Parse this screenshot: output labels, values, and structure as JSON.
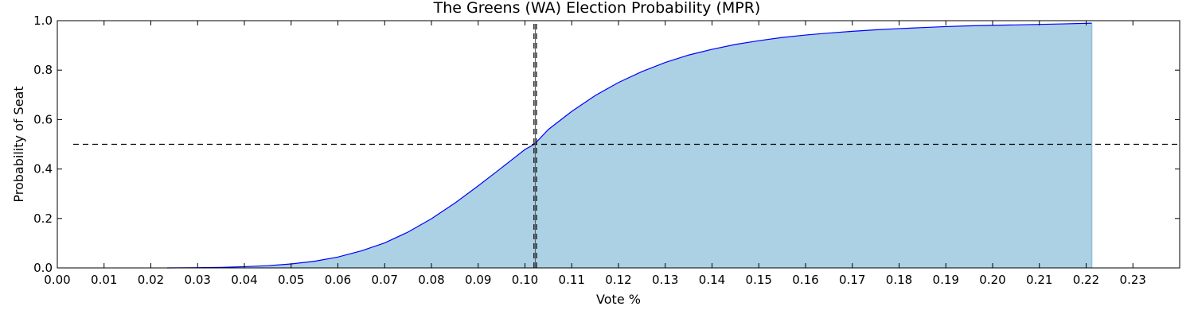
{
  "chart_data": {
    "type": "area",
    "title": "The Greens (WA) Election Probability (MPR)",
    "xlabel": "Vote %",
    "ylabel": "Probability of Seat",
    "xlim": [
      0.0,
      0.24
    ],
    "ylim": [
      0.0,
      1.0
    ],
    "xticks": [
      "0.00",
      "0.01",
      "0.02",
      "0.03",
      "0.04",
      "0.05",
      "0.06",
      "0.07",
      "0.08",
      "0.09",
      "0.10",
      "0.11",
      "0.12",
      "0.13",
      "0.14",
      "0.15",
      "0.16",
      "0.17",
      "0.18",
      "0.19",
      "0.20",
      "0.21",
      "0.22",
      "0.23"
    ],
    "yticks": [
      "0.0",
      "0.2",
      "0.4",
      "0.6",
      "0.8",
      "1.0"
    ],
    "grid": false,
    "series": [
      {
        "x": [
          0.0235,
          0.03,
          0.035,
          0.04,
          0.045,
          0.05,
          0.055,
          0.06,
          0.065,
          0.07,
          0.075,
          0.08,
          0.085,
          0.09,
          0.095,
          0.1,
          0.102,
          0.105,
          0.11,
          0.115,
          0.12,
          0.125,
          0.13,
          0.135,
          0.14,
          0.145,
          0.15,
          0.155,
          0.16,
          0.165,
          0.17,
          0.175,
          0.18,
          0.185,
          0.19,
          0.195,
          0.2,
          0.205,
          0.21,
          0.215,
          0.2212
        ],
        "y": [
          0.0,
          0.001,
          0.002,
          0.005,
          0.009,
          0.016,
          0.027,
          0.044,
          0.069,
          0.101,
          0.145,
          0.199,
          0.262,
          0.332,
          0.405,
          0.479,
          0.5,
          0.56,
          0.633,
          0.697,
          0.75,
          0.794,
          0.831,
          0.861,
          0.884,
          0.904,
          0.919,
          0.932,
          0.942,
          0.95,
          0.957,
          0.963,
          0.968,
          0.972,
          0.976,
          0.979,
          0.981,
          0.983,
          0.985,
          0.987,
          0.99
        ],
        "line_color": "#0000ff",
        "fill_color": "#acd0e4"
      }
    ],
    "reference_lines": [
      {
        "orientation": "horizontal",
        "value": 0.5,
        "style": "dashed"
      },
      {
        "orientation": "vertical",
        "value": 0.1022,
        "style": "dashed"
      }
    ]
  }
}
